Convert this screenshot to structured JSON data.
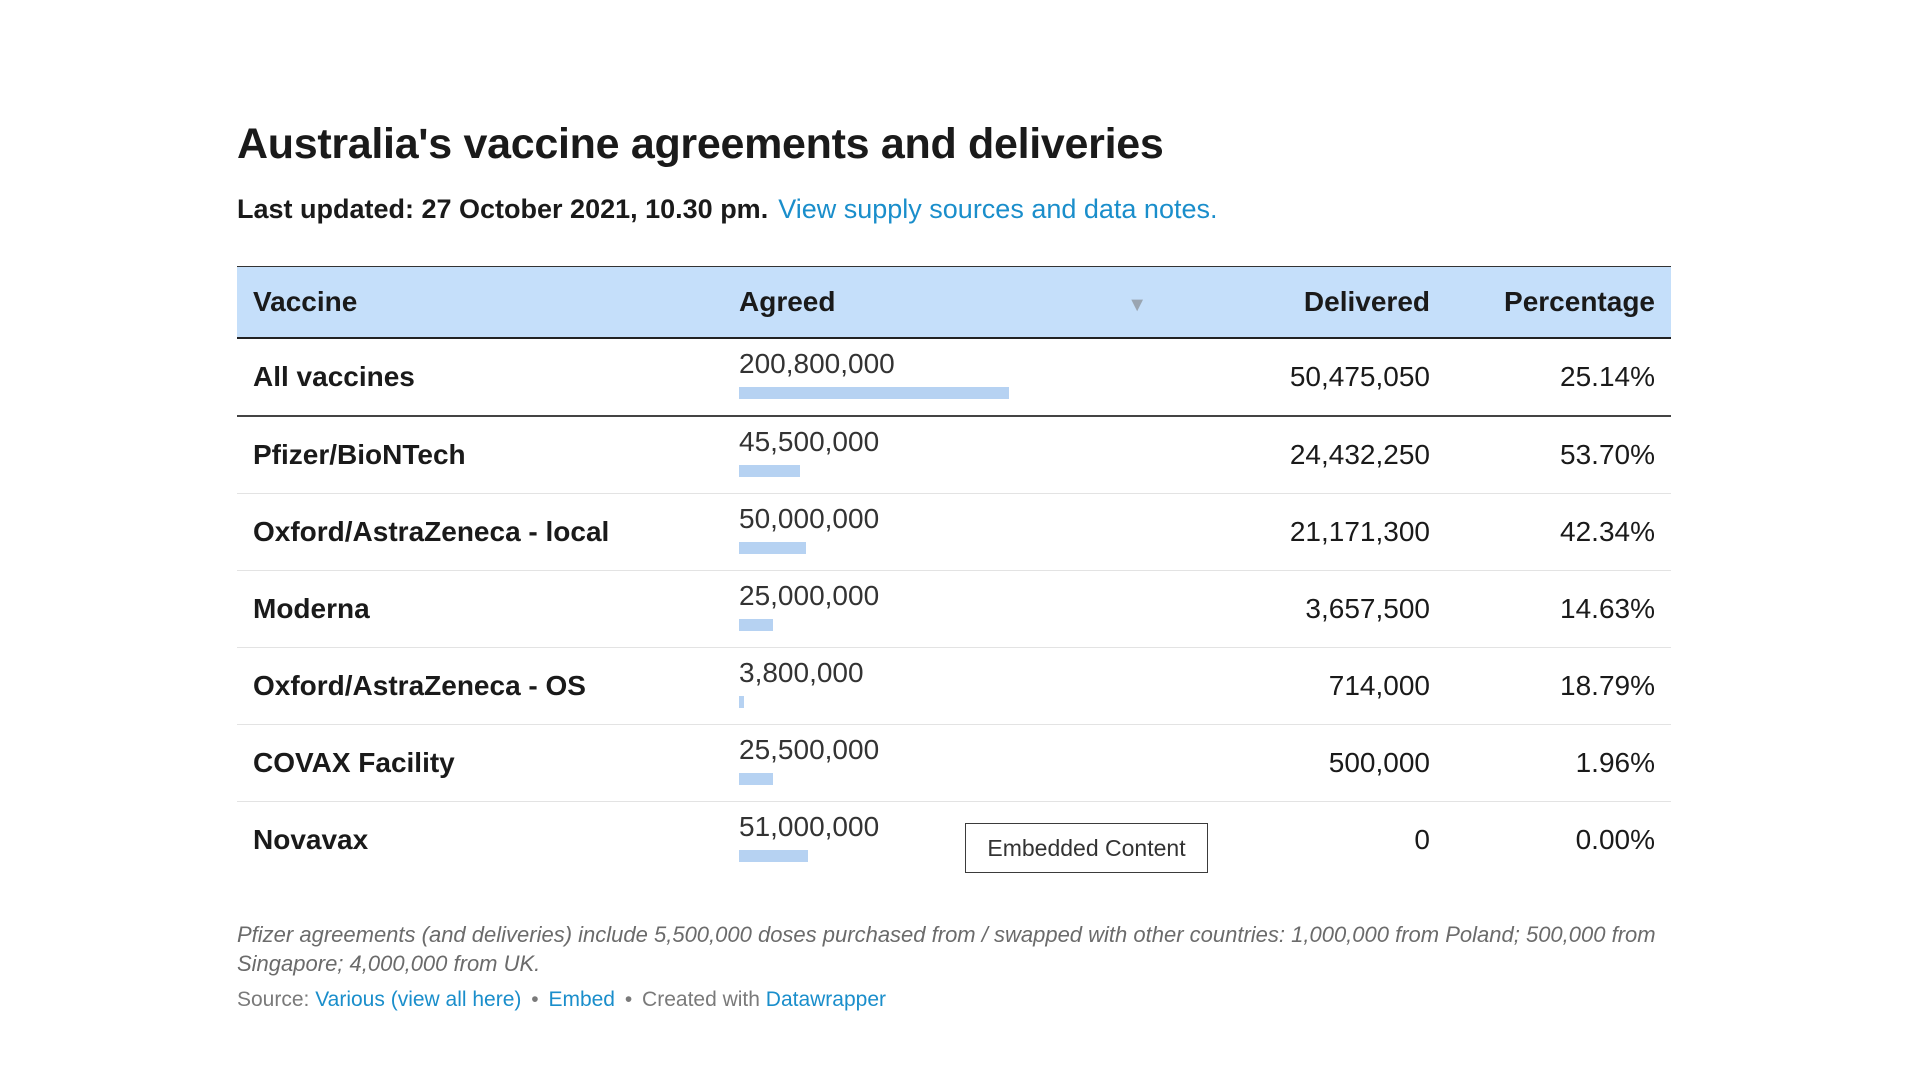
{
  "title": "Australia's vaccine agreements and deliveries",
  "subtitle": {
    "updated": "Last updated: 27 October 2021, 10.30 pm.",
    "link": "View supply sources and data notes."
  },
  "chart_data": {
    "type": "table",
    "columns": [
      "Vaccine",
      "Agreed",
      "Delivered",
      "Percentage"
    ],
    "sort_column": "Agreed",
    "bar_max": 200800000,
    "bar_color": "#b6d2f2",
    "header_bg": "#c5dffa",
    "rows": [
      {
        "vaccine": "All vaccines",
        "agreed": 200800000,
        "agreed_label": "200,800,000",
        "delivered": "50,475,050",
        "percentage": "25.14%"
      },
      {
        "vaccine": "Pfizer/BioNTech",
        "agreed": 45500000,
        "agreed_label": "45,500,000",
        "delivered": "24,432,250",
        "percentage": "53.70%"
      },
      {
        "vaccine": "Oxford/AstraZeneca - local",
        "agreed": 50000000,
        "agreed_label": "50,000,000",
        "delivered": "21,171,300",
        "percentage": "42.34%"
      },
      {
        "vaccine": "Moderna",
        "agreed": 25000000,
        "agreed_label": "25,000,000",
        "delivered": "3,657,500",
        "percentage": "14.63%"
      },
      {
        "vaccine": "Oxford/AstraZeneca - OS",
        "agreed": 3800000,
        "agreed_label": "3,800,000",
        "delivered": "714,000",
        "percentage": "18.79%"
      },
      {
        "vaccine": "COVAX Facility",
        "agreed": 25500000,
        "agreed_label": "25,500,000",
        "delivered": "500,000",
        "percentage": "1.96%"
      },
      {
        "vaccine": "Novavax",
        "agreed": 51000000,
        "agreed_label": "51,000,000",
        "delivered": "0",
        "percentage": "0.00%"
      }
    ]
  },
  "overlay": {
    "label": "Embedded Content"
  },
  "notes": "Pfizer agreements (and deliveries) include 5,500,000 doses purchased from / swapped with other countries: 1,000,000 from Poland; 500,000 from Singapore; 4,000,000 from UK.",
  "footer": {
    "source_prefix": "Source:",
    "source_link": "Various (view all here)",
    "embed_link": "Embed",
    "separator": "•",
    "created_text": "Created with",
    "tool_link": "Datawrapper"
  }
}
